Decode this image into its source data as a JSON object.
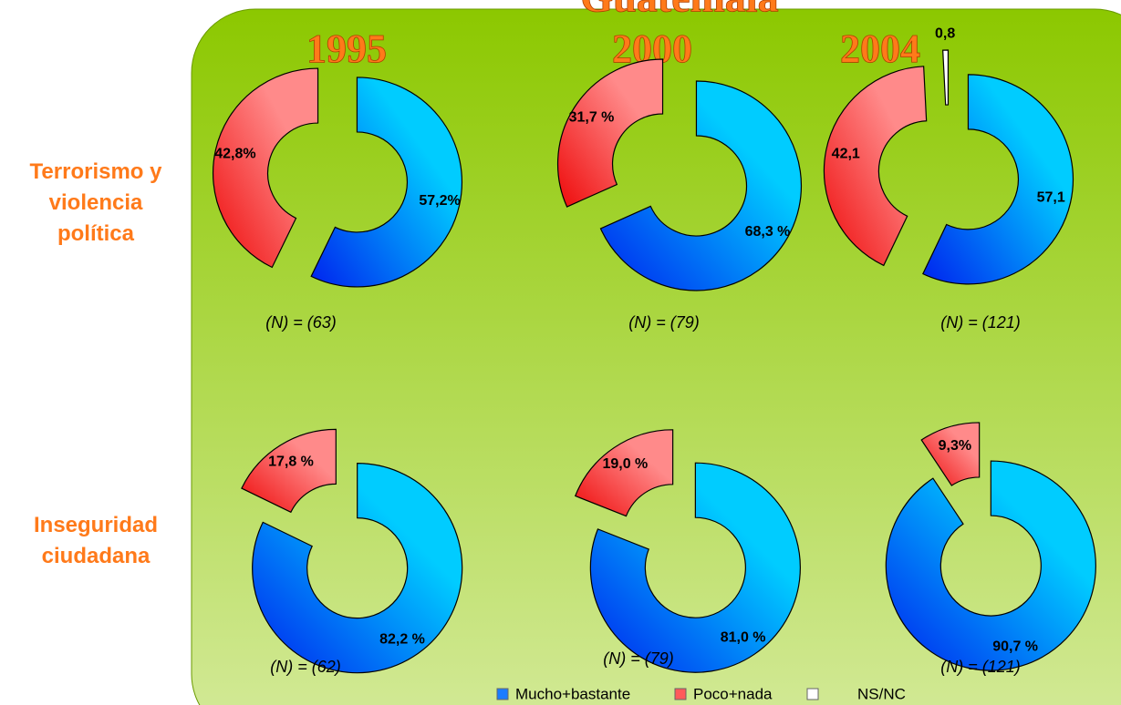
{
  "title": "Guatemala",
  "years": [
    "1995",
    "2000",
    "2004"
  ],
  "rows": [
    "Terrorismo y violencia política",
    "Inseguridad ciudadana"
  ],
  "legend": [
    {
      "name": "Mucho+bastante",
      "color": "#1a7cff"
    },
    {
      "name": "Poco+nada",
      "color": "#ff5a5a"
    },
    {
      "name": "NS/NC",
      "color": "#ffffff"
    }
  ],
  "chart_data": [
    {
      "type": "pie",
      "values": [
        57.2,
        42.8
      ],
      "value_labels": [
        "57,2%",
        "42,8%"
      ],
      "colors": [
        "blue",
        "red"
      ],
      "n_label": "(N) =  (63)"
    },
    {
      "type": "pie",
      "values": [
        68.3,
        31.7
      ],
      "value_labels": [
        "68,3 %",
        "31,7 %"
      ],
      "colors": [
        "blue",
        "red"
      ],
      "n_label": "(N) =  (79)"
    },
    {
      "type": "pie",
      "values": [
        57.1,
        42.1,
        0.8
      ],
      "value_labels": [
        "57,1",
        "42,1",
        "0,8"
      ],
      "colors": [
        "blue",
        "red",
        "white"
      ],
      "n_label": "(N) =  (121)"
    },
    {
      "type": "pie",
      "values": [
        82.2,
        17.8
      ],
      "value_labels": [
        "82,2 %",
        "17,8 %"
      ],
      "colors": [
        "blue",
        "red"
      ],
      "n_label": "(N) =  (62)"
    },
    {
      "type": "pie",
      "values": [
        81.0,
        19.0
      ],
      "value_labels": [
        "81,0 %",
        "19,0 %"
      ],
      "colors": [
        "blue",
        "red"
      ],
      "n_label": "(N) =  (79)"
    },
    {
      "type": "pie",
      "values": [
        90.7,
        9.3
      ],
      "value_labels": [
        "90,7 %",
        "9,3%"
      ],
      "colors": [
        "blue",
        "red"
      ],
      "n_label": "(N) =  (121)"
    }
  ]
}
